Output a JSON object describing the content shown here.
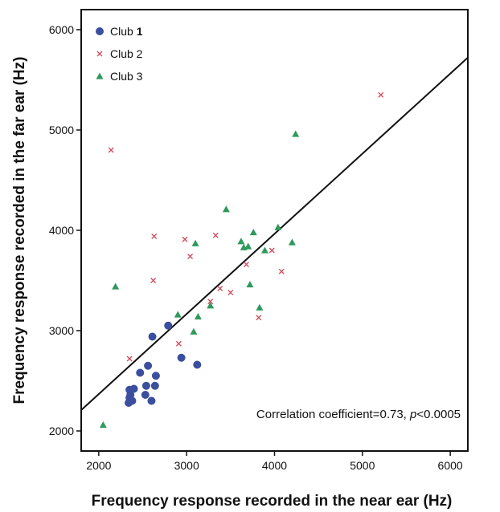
{
  "chart_data": {
    "type": "scatter",
    "xlabel": "Frequency response recorded in the near ear (Hz)",
    "ylabel": "Frequency response recorded in the far ear (Hz)",
    "xlim": [
      1800,
      6200
    ],
    "ylim": [
      1800,
      6200
    ],
    "xticks": [
      2000,
      3000,
      4000,
      5000,
      6000
    ],
    "yticks": [
      2000,
      3000,
      4000,
      5000,
      6000
    ],
    "grid": false,
    "legend_position": "top-left",
    "annotation": {
      "prefix": "Correlation coefficient=0.73, ",
      "italic": "p",
      "suffix": "<0.0005"
    },
    "series": [
      {
        "name": "Club 1",
        "name_bold_part": "1",
        "marker": "circle",
        "color": "#3b4f9e",
        "points": [
          [
            2340,
            2280
          ],
          [
            2350,
            2330
          ],
          [
            2360,
            2360
          ],
          [
            2380,
            2300
          ],
          [
            2400,
            2420
          ],
          [
            2350,
            2410
          ],
          [
            2470,
            2580
          ],
          [
            2530,
            2360
          ],
          [
            2540,
            2450
          ],
          [
            2560,
            2650
          ],
          [
            2600,
            2300
          ],
          [
            2640,
            2450
          ],
          [
            2650,
            2550
          ],
          [
            2610,
            2940
          ],
          [
            2790,
            3050
          ],
          [
            2940,
            2730
          ],
          [
            3120,
            2660
          ]
        ]
      },
      {
        "name": "Club 2",
        "name_bold_part": "",
        "marker": "x",
        "color": "#d24b5a",
        "points": [
          [
            2140,
            4800
          ],
          [
            2350,
            2720
          ],
          [
            2620,
            3500
          ],
          [
            2630,
            3940
          ],
          [
            2910,
            2870
          ],
          [
            2980,
            3910
          ],
          [
            3040,
            3740
          ],
          [
            3270,
            3290
          ],
          [
            3330,
            3950
          ],
          [
            3380,
            3420
          ],
          [
            3500,
            3380
          ],
          [
            3680,
            3660
          ],
          [
            3820,
            3130
          ],
          [
            3970,
            3800
          ],
          [
            4080,
            3590
          ],
          [
            5210,
            5350
          ]
        ]
      },
      {
        "name": "Club 3",
        "name_bold_part": "",
        "marker": "triangle",
        "color": "#2e9a5a",
        "points": [
          [
            2050,
            2060
          ],
          [
            2190,
            3440
          ],
          [
            2900,
            3160
          ],
          [
            3080,
            2990
          ],
          [
            3100,
            3870
          ],
          [
            3130,
            3140
          ],
          [
            3270,
            3250
          ],
          [
            3450,
            4210
          ],
          [
            3620,
            3890
          ],
          [
            3650,
            3830
          ],
          [
            3700,
            3840
          ],
          [
            3720,
            3460
          ],
          [
            3760,
            3980
          ],
          [
            3830,
            3230
          ],
          [
            3890,
            3800
          ],
          [
            4040,
            4030
          ],
          [
            4200,
            3880
          ],
          [
            4240,
            4960
          ]
        ]
      }
    ],
    "regression_line": {
      "x": [
        1800,
        6200
      ],
      "y": [
        2208,
        5722
      ]
    }
  }
}
